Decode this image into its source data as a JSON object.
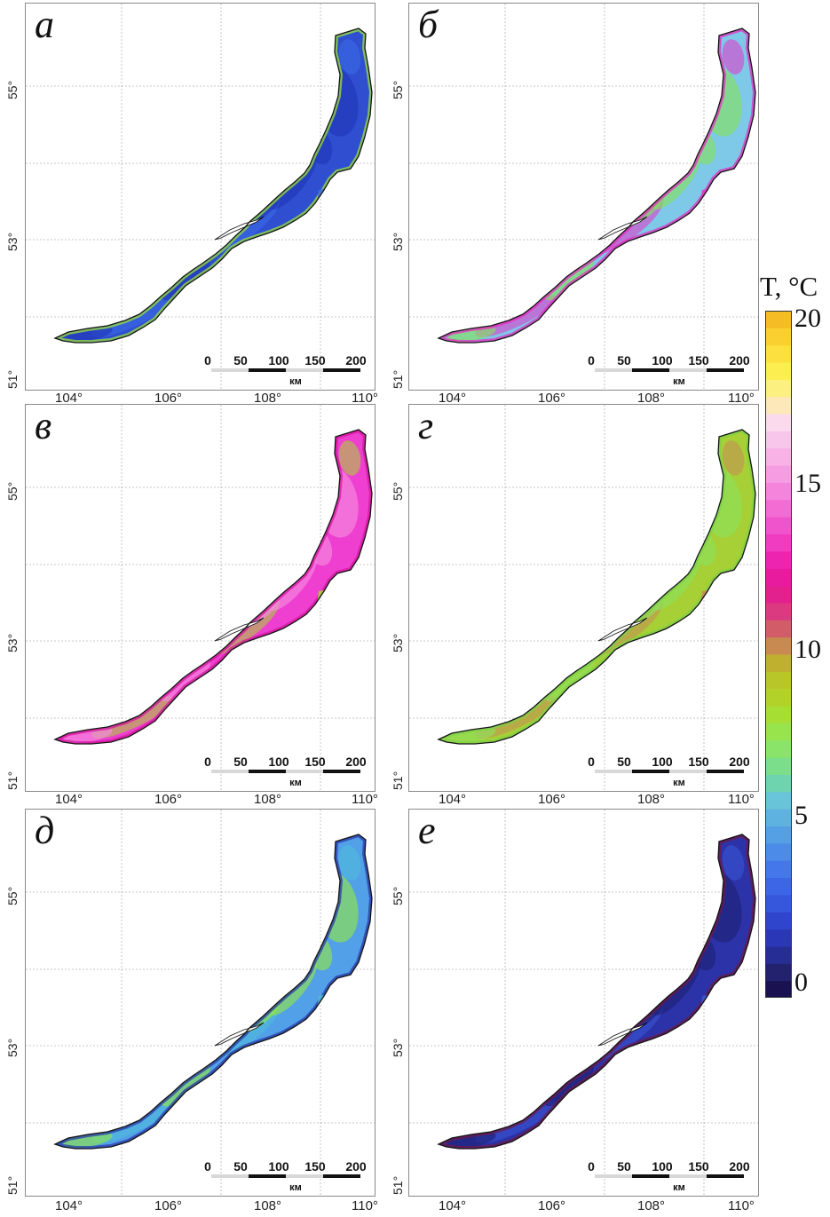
{
  "panels": [
    {
      "label": "а",
      "lat_labels": [
        "55°",
        "53°",
        "51°"
      ],
      "lon_labels": [
        "104°",
        "106°",
        "108°",
        "110°"
      ],
      "colors": {
        "main": "#2f4fd0",
        "shade": "#2238b8",
        "accent": "#3d6ee8",
        "edge": "#9ae03c"
      }
    },
    {
      "label": "б",
      "lat_labels": [
        "55°",
        "53°",
        "51°"
      ],
      "lon_labels": [
        "104°",
        "106°",
        "108°",
        "110°"
      ],
      "colors": {
        "main": "#7ec8e8",
        "shade": "#86e060",
        "accent": "#e835c8",
        "edge": "#e52dbf"
      }
    },
    {
      "label": "в",
      "lat_labels": [
        "55°",
        "53°",
        "51°"
      ],
      "lon_labels": [
        "104°",
        "106°",
        "108°",
        "110°"
      ],
      "colors": {
        "main": "#ee3fd0",
        "shade": "#f68be0",
        "accent": "#a7d832",
        "edge": "#d4169e"
      }
    },
    {
      "label": "г",
      "lat_labels": [
        "55°",
        "53°",
        "51°"
      ],
      "lon_labels": [
        "104°",
        "106°",
        "108°",
        "110°"
      ],
      "colors": {
        "main": "#a6d035",
        "shade": "#8ee05a",
        "accent": "#c98a58",
        "edge": "#7fd04a"
      }
    },
    {
      "label": "д",
      "lat_labels": [
        "55°",
        "53°",
        "51°"
      ],
      "lon_labels": [
        "104°",
        "106°",
        "108°",
        "110°"
      ],
      "colors": {
        "main": "#52a0e8",
        "shade": "#8fe34a",
        "accent": "#4fc0d8",
        "edge": "#2a3aa8"
      }
    },
    {
      "label": "е",
      "lat_labels": [
        "55°",
        "53°",
        "51°"
      ],
      "lon_labels": [
        "104°",
        "106°",
        "108°",
        "110°"
      ],
      "colors": {
        "main": "#2c33a8",
        "shade": "#1e2276",
        "accent": "#3d58d8",
        "edge": "#6b1a4a"
      }
    }
  ],
  "scale_bar": {
    "ticks": [
      "0",
      "50",
      "100",
      "150",
      "200"
    ],
    "unit": "км"
  },
  "colorbar": {
    "title": "T, °C",
    "ticks": [
      "20",
      "15",
      "10",
      "5",
      "0"
    ],
    "range": [
      0,
      20
    ],
    "colors": [
      "#1a1250",
      "#22226e",
      "#262e96",
      "#2a38b8",
      "#2f46cc",
      "#3656dc",
      "#3d66e6",
      "#4478ea",
      "#4c8ce8",
      "#55a0e4",
      "#5eb2e0",
      "#68c4d8",
      "#6ed4b0",
      "#7ade8a",
      "#8ae46a",
      "#98e44c",
      "#a6de34",
      "#b2d22a",
      "#b8c62a",
      "#c0b030",
      "#c88a50",
      "#d25c68",
      "#dc3a80",
      "#e2208e",
      "#e81a9e",
      "#ec24b0",
      "#ef3cc0",
      "#f054cc",
      "#f26cd4",
      "#f484dc",
      "#f69ce2",
      "#f8b2e6",
      "#f8c6ea",
      "#fadaec",
      "#fce8b8",
      "#fcf080",
      "#fcee50",
      "#fce040",
      "#fad030",
      "#f6bc26"
    ]
  }
}
